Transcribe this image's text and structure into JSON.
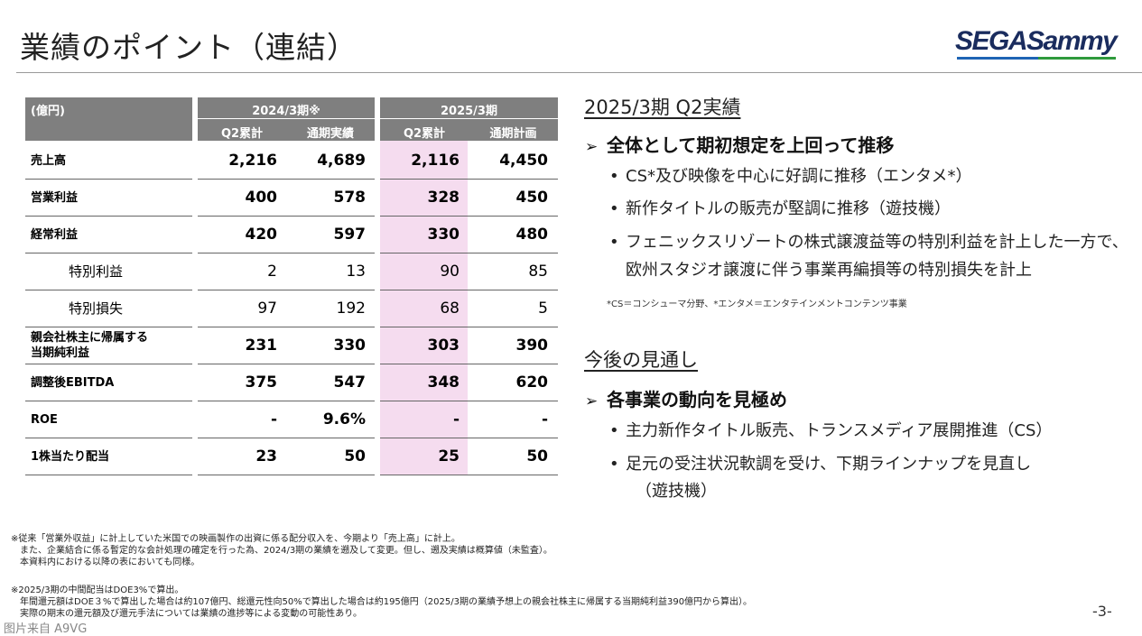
{
  "page": {
    "title": "業績のポイント（連結）",
    "logo": "SEGASammy",
    "page_number": "-3-",
    "watermark": "图片来自 A9VG"
  },
  "table": {
    "unit": "(億円)",
    "period_2024": "2024/3期※",
    "period_2025": "2025/3期",
    "sub_headers": [
      "Q2累計",
      "通期実績",
      "Q2累計",
      "通期計画"
    ],
    "rows": [
      {
        "label": "売上高",
        "values": [
          "2,216",
          "4,689",
          "2,116",
          "4,450"
        ]
      },
      {
        "label": "営業利益",
        "values": [
          "400",
          "578",
          "328",
          "450"
        ]
      },
      {
        "label": "経常利益",
        "values": [
          "420",
          "597",
          "330",
          "480"
        ]
      },
      {
        "label": "特別利益",
        "values": [
          "2",
          "13",
          "90",
          "85"
        ]
      },
      {
        "label": "特別損失",
        "values": [
          "97",
          "192",
          "68",
          "5"
        ]
      },
      {
        "label": "親会社株主に帰属する当期純利益",
        "label_line1": "親会社株主に帰属する",
        "label_line2": "当期純利益",
        "values": [
          "231",
          "330",
          "303",
          "390"
        ]
      },
      {
        "label": "調整後EBITDA",
        "values": [
          "375",
          "547",
          "348",
          "620"
        ]
      },
      {
        "label": "ROE",
        "values": [
          "-",
          "9.6%",
          "-",
          "-"
        ]
      },
      {
        "label": "1株当たり配当",
        "values": [
          "23",
          "50",
          "25",
          "50"
        ]
      }
    ]
  },
  "right": {
    "section1_title": "2025/3期 Q2実績",
    "headline1": "全体として期初想定を上回って推移",
    "bullets1": [
      "CS*及び映像を中心に好調に推移（エンタメ*）",
      "新作タイトルの販売が堅調に推移（遊技機）",
      "フェニックスリゾートの株式譲渡益等の特別利益を計上した一方で、",
      "欧州スタジオ譲渡に伴う事業再編損等の特別損失を計上"
    ],
    "note": "*CS＝コンシューマ分野、*エンタメ＝エンタテインメントコンテンツ事業",
    "section2_title": "今後の見通し",
    "headline2": "各事業の動向を見極め",
    "bullets2": [
      "主力新作タイトル販売、トランスメディア展開推進（CS）",
      "足元の受注状況軟調を受け、下期ラインナップを見直し",
      "（遊技機）"
    ],
    "bullet_char": "•",
    "arrow_char": "➢"
  },
  "footnotes": [
    "※従来「営業外収益」に計上していた米国での映画製作の出資に係る配分収入を、今期より「売上高」に計上。",
    "　また、企業結合に係る暫定的な会計処理の確定を行った為、2024/3期の業績を遡及して変更。但し、遡及実績は概算値（未監査）。",
    "　本資料内における以降の表においても同様。",
    "※2025/3期の中間配当はDOE3%で算出。",
    "　年間還元額はDOE３%で算出した場合は約107億円、総還元性向50%で算出した場合は約195億円（2025/3期の業績予想上の親会社株主に帰属する当期純利益390億円から算出）。",
    "　実際の期末の還元額及び還元手法については業績の進捗等による変動の可能性あり。"
  ],
  "colors": {
    "header_grey": "#7f7f7f",
    "highlight_pink": "#f5dcef",
    "logo_blue": "#1e64b4",
    "logo_green": "#2f9a3c"
  }
}
